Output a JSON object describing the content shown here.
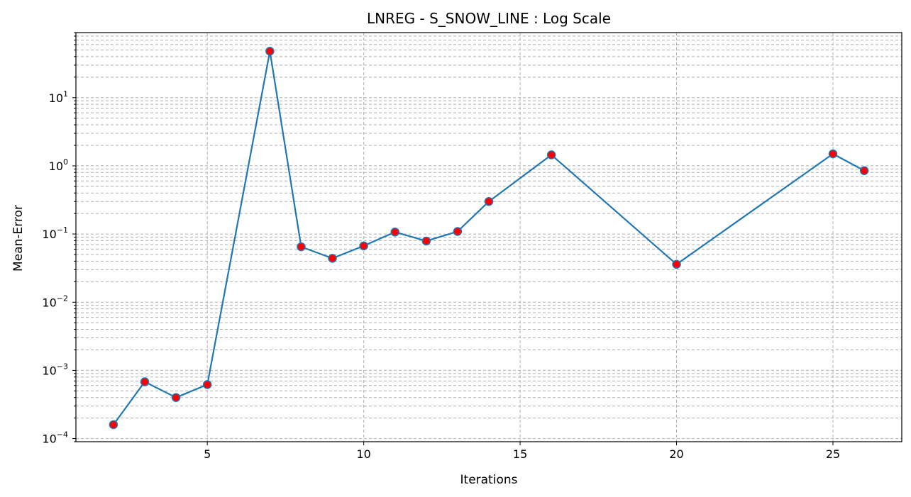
{
  "chart_data": {
    "type": "line",
    "title": "LNREG - S_SNOW_LINE : Log Scale",
    "xlabel": "Iterations",
    "ylabel": "Mean-Error",
    "yscale": "log",
    "xlim": [
      0.8,
      27.2
    ],
    "ylim": [
      9e-05,
      90
    ],
    "grid": true,
    "grid_style": "dashed",
    "line_color": "#1f77b4",
    "marker_face_color": "#ff0000",
    "marker_edge_color": "#1f77b4",
    "x_ticks": [
      {
        "value": 5,
        "label": "5"
      },
      {
        "value": 10,
        "label": "10"
      },
      {
        "value": 15,
        "label": "15"
      },
      {
        "value": 20,
        "label": "20"
      },
      {
        "value": 25,
        "label": "25"
      }
    ],
    "y_ticks": [
      {
        "value": 0.0001,
        "base": "10",
        "exp": "−4"
      },
      {
        "value": 0.001,
        "base": "10",
        "exp": "−3"
      },
      {
        "value": 0.01,
        "base": "10",
        "exp": "−2"
      },
      {
        "value": 0.1,
        "base": "10",
        "exp": "−1"
      },
      {
        "value": 1,
        "base": "10",
        "exp": "0"
      },
      {
        "value": 10,
        "base": "10",
        "exp": "1"
      }
    ],
    "points": [
      {
        "x": 2,
        "y": 0.00016
      },
      {
        "x": 3,
        "y": 0.00068
      },
      {
        "x": 4,
        "y": 0.0004
      },
      {
        "x": 5,
        "y": 0.00062
      },
      {
        "x": 7,
        "y": 48
      },
      {
        "x": 8,
        "y": 0.065
      },
      {
        "x": 9,
        "y": 0.044
      },
      {
        "x": 10,
        "y": 0.067
      },
      {
        "x": 11,
        "y": 0.107
      },
      {
        "x": 12,
        "y": 0.079
      },
      {
        "x": 13,
        "y": 0.109
      },
      {
        "x": 14,
        "y": 0.3
      },
      {
        "x": 16,
        "y": 1.45
      },
      {
        "x": 20,
        "y": 0.036
      },
      {
        "x": 25,
        "y": 1.5
      },
      {
        "x": 26,
        "y": 0.85
      }
    ]
  }
}
